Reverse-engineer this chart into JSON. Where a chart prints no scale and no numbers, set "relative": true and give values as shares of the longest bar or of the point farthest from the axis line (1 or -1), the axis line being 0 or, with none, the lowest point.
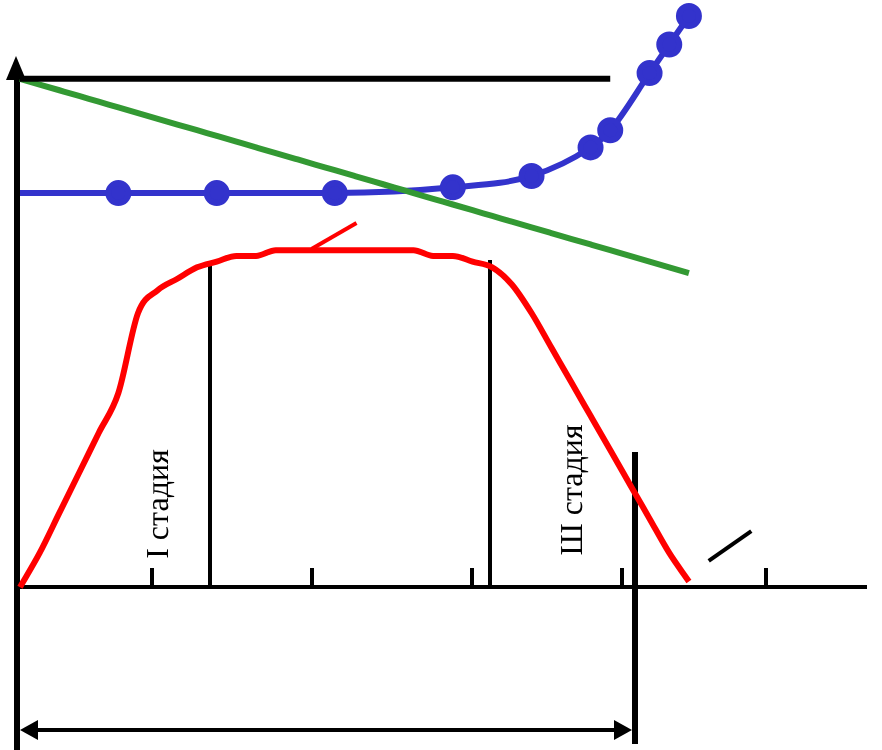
{
  "chart_data": {
    "type": "line",
    "relative": true,
    "legend": false,
    "grid": false,
    "annotations": [
      "I стадия",
      "Ш стадия"
    ],
    "categories": [
      null,
      null,
      null,
      null,
      null,
      null,
      null,
      null,
      null,
      null,
      null,
      null,
      null,
      null,
      null,
      null,
      null,
      null,
      null,
      null,
      null,
      null,
      null,
      null,
      null,
      null,
      null,
      null,
      null,
      null,
      null,
      null,
      null,
      null,
      null,
      null,
      null,
      null,
      null,
      null,
      null,
      null,
      null,
      null
    ],
    "series": [
      {
        "color": "#ff0000",
        "marker": "none",
        "values": [
          0,
          0.06,
          0.13,
          0.2,
          0.27,
          0.34,
          0.48,
          0.52,
          0.54,
          0.56,
          0.57,
          0.58,
          0.58,
          0.59,
          0.59,
          0.59,
          0.59,
          0.59,
          0.59,
          0.59,
          0.59,
          0.58,
          0.58,
          0.57,
          0.56,
          0.53,
          0.48,
          0.42,
          0.36,
          0.3,
          0.24,
          0.18,
          0.12,
          0.06,
          0.01,
          null,
          null,
          null,
          null,
          null,
          null,
          null,
          null,
          null
        ]
      },
      {
        "color": "#3333cc",
        "marker": "circle",
        "values": [
          0.69,
          null,
          null,
          null,
          null,
          0.69,
          null,
          null,
          null,
          null,
          0.69,
          null,
          null,
          null,
          null,
          null,
          0.69,
          null,
          null,
          null,
          null,
          null,
          0.7,
          null,
          null,
          null,
          0.72,
          null,
          null,
          0.77,
          0.8,
          null,
          0.9,
          0.95,
          1,
          null,
          null,
          null,
          null,
          null,
          null,
          null,
          null,
          null
        ]
      },
      {
        "color": "#339933",
        "marker": "none",
        "values": [
          0.89,
          0.88,
          0.87,
          0.86,
          0.85,
          0.84,
          0.83,
          0.82,
          0.81,
          0.8,
          0.79,
          0.78,
          0.77,
          0.76,
          0.75,
          0.74,
          0.73,
          0.72,
          0.71,
          0.7,
          0.69,
          0.68,
          0.67,
          0.66,
          0.65,
          0.64,
          0.63,
          0.62,
          0.61,
          0.6,
          0.59,
          0.58,
          0.57,
          0.56,
          0.55,
          null,
          null,
          null,
          null,
          null,
          null,
          null,
          null,
          null
        ]
      },
      {
        "color": "#000000",
        "marker": "none",
        "values": [
          0.89,
          0.89,
          0.89,
          0.89,
          0.89,
          0.89,
          0.89,
          0.89,
          0.89,
          0.89,
          0.89,
          0.89,
          0.89,
          0.89,
          0.89,
          0.89,
          0.89,
          0.89,
          0.89,
          0.89,
          0.89,
          0.89,
          0.89,
          0.89,
          0.89,
          0.89,
          0.89,
          0.89,
          0.89,
          0.89,
          0.89,
          null,
          null,
          null,
          null,
          null,
          null,
          null,
          null,
          null,
          null,
          null,
          null,
          null
        ]
      }
    ]
  }
}
